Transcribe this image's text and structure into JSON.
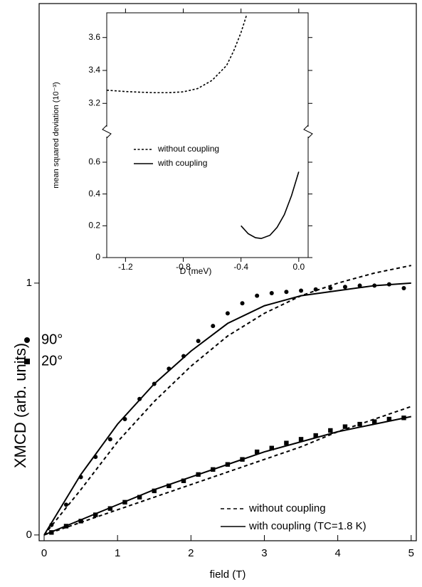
{
  "chart_data": [
    {
      "type": "scatter",
      "x_label": "field (T)",
      "y_label": "XMCD (arb. units)",
      "xlim": [
        -0.068,
        5.07
      ],
      "ylim": [
        -0.023,
        2.11
      ],
      "xticks": [
        0,
        1,
        2,
        3,
        4,
        5
      ],
      "yticks": [
        0,
        1
      ],
      "series": [
        {
          "name": "90°",
          "marker": "circle",
          "color": "#000000",
          "x": [
            0.1,
            0.3,
            0.5,
            0.7,
            0.9,
            1.1,
            1.3,
            1.5,
            1.7,
            1.9,
            2.1,
            2.3,
            2.5,
            2.7,
            2.9,
            3.1,
            3.3,
            3.5,
            3.7,
            3.9,
            4.1,
            4.3,
            4.5,
            4.7,
            4.9
          ],
          "values": [
            0.04,
            0.12,
            0.23,
            0.31,
            0.38,
            0.46,
            0.54,
            0.6,
            0.66,
            0.71,
            0.77,
            0.83,
            0.88,
            0.92,
            0.95,
            0.96,
            0.965,
            0.97,
            0.975,
            0.98,
            0.985,
            0.99,
            0.99,
            0.995,
            0.98
          ]
        },
        {
          "name": "20°",
          "marker": "square",
          "color": "#000000",
          "x": [
            0.1,
            0.3,
            0.5,
            0.7,
            0.9,
            1.1,
            1.3,
            1.5,
            1.7,
            1.9,
            2.1,
            2.3,
            2.5,
            2.7,
            2.9,
            3.1,
            3.3,
            3.5,
            3.7,
            3.9,
            4.1,
            4.3,
            4.5,
            4.7,
            4.9
          ],
          "values": [
            0.01,
            0.035,
            0.055,
            0.08,
            0.105,
            0.13,
            0.15,
            0.175,
            0.195,
            0.215,
            0.24,
            0.26,
            0.28,
            0.3,
            0.33,
            0.345,
            0.365,
            0.38,
            0.395,
            0.415,
            0.43,
            0.44,
            0.45,
            0.46,
            0.465
          ]
        }
      ],
      "fits": [
        {
          "name": "without coupling",
          "dash": true,
          "color": "#000000",
          "curves": [
            {
              "x": [
                0,
                0.5,
                1,
                1.5,
                2,
                2.5,
                3,
                3.5,
                4,
                4.5,
                5
              ],
              "values": [
                0,
                0.18,
                0.37,
                0.53,
                0.67,
                0.79,
                0.88,
                0.95,
                1.0,
                1.04,
                1.07
              ]
            },
            {
              "x": [
                0,
                0.5,
                1,
                1.5,
                2,
                2.5,
                3,
                3.5,
                4,
                4.5,
                5
              ],
              "values": [
                0,
                0.05,
                0.1,
                0.15,
                0.2,
                0.25,
                0.3,
                0.35,
                0.41,
                0.46,
                0.51
              ]
            }
          ]
        },
        {
          "name": "with coupling (TC=1.8 K)",
          "dash": false,
          "color": "#000000",
          "curves": [
            {
              "x": [
                0,
                0.5,
                1,
                1.5,
                2,
                2.5,
                3,
                3.5,
                4,
                4.5,
                5
              ],
              "values": [
                0,
                0.24,
                0.44,
                0.6,
                0.73,
                0.84,
                0.91,
                0.95,
                0.97,
                0.99,
                1.0
              ]
            },
            {
              "x": [
                0,
                0.5,
                1,
                1.5,
                2,
                2.5,
                3,
                3.5,
                4,
                4.5,
                5
              ],
              "values": [
                0,
                0.06,
                0.12,
                0.18,
                0.23,
                0.28,
                0.33,
                0.37,
                0.41,
                0.44,
                0.47
              ]
            }
          ]
        }
      ]
    },
    {
      "type": "line",
      "x_label": "D (meV)",
      "y_label": "mean squared deviation (10⁻³)",
      "xlim": [
        -1.33,
        0.065
      ],
      "xticks": [
        -1.2,
        -0.8,
        -0.4,
        {
          "value": 0,
          "label": "0.0"
        }
      ],
      "ylim_lower": [
        0,
        0.77
      ],
      "yticks_lower": [
        0,
        0.2,
        0.4,
        0.6
      ],
      "ylim_upper": [
        3.05,
        3.75
      ],
      "yticks_upper": [
        3.2,
        3.4,
        3.6
      ],
      "series": [
        {
          "name": "without coupling",
          "dash": true,
          "color": "#000000",
          "part": "upper",
          "x": [
            -1.33,
            -1.2,
            -1.1,
            -1.0,
            -0.9,
            -0.8,
            -0.7,
            -0.6,
            -0.5,
            -0.45,
            -0.4,
            -0.36
          ],
          "values": [
            3.28,
            3.272,
            3.268,
            3.265,
            3.265,
            3.27,
            3.29,
            3.34,
            3.43,
            3.52,
            3.63,
            3.74
          ]
        },
        {
          "name": "with coupling",
          "dash": false,
          "color": "#000000",
          "part": "lower",
          "x": [
            -0.4,
            -0.35,
            -0.3,
            -0.26,
            -0.2,
            -0.15,
            -0.1,
            -0.05,
            0.0
          ],
          "values": [
            0.2,
            0.15,
            0.125,
            0.12,
            0.14,
            0.19,
            0.27,
            0.39,
            0.54
          ]
        }
      ]
    }
  ]
}
